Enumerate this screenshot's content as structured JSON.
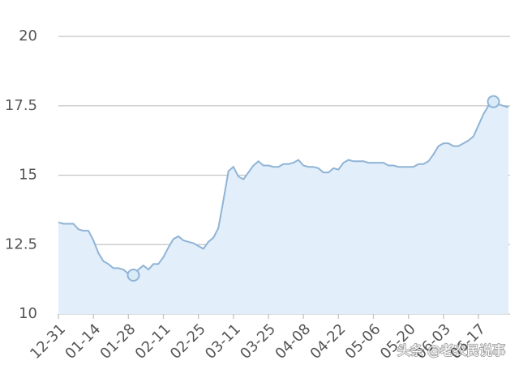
{
  "chart_data": {
    "type": "area",
    "categories": [
      "12-31",
      null,
      null,
      null,
      null,
      null,
      null,
      "01-14",
      null,
      null,
      null,
      null,
      null,
      null,
      "01-28",
      null,
      null,
      null,
      null,
      null,
      null,
      "02-11",
      null,
      null,
      null,
      null,
      null,
      null,
      "02-25",
      null,
      null,
      null,
      null,
      null,
      null,
      "03-11",
      null,
      null,
      null,
      null,
      null,
      null,
      "03-25",
      null,
      null,
      null,
      null,
      null,
      null,
      "04-08",
      null,
      null,
      null,
      null,
      null,
      null,
      "04-22",
      null,
      null,
      null,
      null,
      null,
      null,
      "05-06",
      null,
      null,
      null,
      null,
      null,
      null,
      "05-20",
      null,
      null,
      null,
      null,
      null,
      null,
      "06-03",
      null,
      null,
      null,
      null,
      null,
      null,
      "06-17",
      null,
      null,
      null,
      null,
      null,
      null
    ],
    "values": [
      13.3,
      13.25,
      13.25,
      13.25,
      13.05,
      13,
      13,
      12.65,
      12.2,
      11.9,
      11.8,
      11.65,
      11.65,
      11.6,
      11.45,
      11.4,
      11.6,
      11.75,
      11.6,
      11.8,
      11.8,
      12.05,
      12.4,
      12.7,
      12.8,
      12.65,
      12.6,
      12.55,
      12.45,
      12.35,
      12.6,
      12.75,
      13.1,
      14.1,
      15.15,
      15.3,
      14.95,
      14.85,
      15.1,
      15.35,
      15.5,
      15.35,
      15.35,
      15.3,
      15.3,
      15.4,
      15.4,
      15.45,
      15.55,
      15.35,
      15.3,
      15.3,
      15.25,
      15.1,
      15.1,
      15.25,
      15.2,
      15.45,
      15.55,
      15.5,
      15.5,
      15.5,
      15.45,
      15.45,
      15.45,
      15.45,
      15.35,
      15.35,
      15.3,
      15.3,
      15.3,
      15.3,
      15.4,
      15.4,
      15.5,
      15.75,
      16.05,
      16.15,
      16.15,
      16.05,
      16.05,
      16.15,
      16.25,
      16.4,
      16.8,
      17.2,
      17.5,
      17.65,
      17.55,
      17.5,
      17.45
    ],
    "color": "#8fb4d6",
    "fill": "#e2eefa",
    "ylim": [
      10,
      20
    ],
    "yticks": [
      10,
      12.5,
      15,
      17.5,
      20
    ],
    "grid": true,
    "watermark": "头条 @老农民说事"
  }
}
